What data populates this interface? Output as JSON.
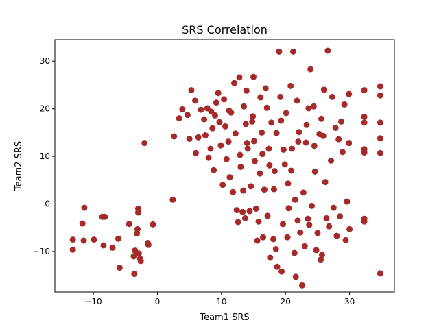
{
  "chart_data": {
    "type": "scatter",
    "title": "SRS Correlation",
    "xlabel": "Team1 SRS",
    "ylabel": "Team2 SRS",
    "xlim": [
      -16,
      37
    ],
    "ylim": [
      -18.5,
      34.5
    ],
    "xticks": [
      -10,
      0,
      10,
      20,
      30
    ],
    "yticks": [
      -10,
      0,
      10,
      20,
      30
    ],
    "xtick_labels": [
      "−10",
      "0",
      "10",
      "20",
      "30"
    ],
    "ytick_labels": [
      "−10",
      "0",
      "10",
      "20",
      "30"
    ],
    "grid": false,
    "marker_color": "#a52a2a",
    "points": [
      [
        -13.2,
        -7.5
      ],
      [
        -13.2,
        -9.6
      ],
      [
        -11.7,
        -4.1
      ],
      [
        -11.4,
        -0.8
      ],
      [
        -11.5,
        -7.7
      ],
      [
        -9.9,
        -7.5
      ],
      [
        -8.6,
        -2.7
      ],
      [
        -8.2,
        -2.7
      ],
      [
        -8.4,
        -8.7
      ],
      [
        -7.0,
        -9.2
      ],
      [
        -6.1,
        -7.3
      ],
      [
        -5.9,
        -13.4
      ],
      [
        -4.4,
        -4.2
      ],
      [
        -3.7,
        -11.0
      ],
      [
        -3.6,
        -14.7
      ],
      [
        -3.5,
        -9.8
      ],
      [
        -3.2,
        -6.2
      ],
      [
        -3.1,
        -5.3
      ],
      [
        -3.0,
        -1.0
      ],
      [
        -3.0,
        -1.8
      ],
      [
        -2.9,
        -10.4
      ],
      [
        -2.7,
        -11.5
      ],
      [
        -2.6,
        -12.0
      ],
      [
        -2.0,
        12.8
      ],
      [
        -1.5,
        -8.2
      ],
      [
        -1.4,
        -8.6
      ],
      [
        -0.7,
        -4.3
      ],
      [
        2.4,
        0.9
      ],
      [
        2.6,
        14.2
      ],
      [
        3.4,
        18.0
      ],
      [
        3.9,
        19.9
      ],
      [
        4.7,
        18.7
      ],
      [
        5.0,
        13.7
      ],
      [
        5.3,
        23.9
      ],
      [
        5.9,
        21.7
      ],
      [
        6.0,
        10.7
      ],
      [
        6.4,
        14.0
      ],
      [
        6.8,
        19.8
      ],
      [
        7.3,
        17.8
      ],
      [
        7.5,
        14.4
      ],
      [
        7.8,
        20.1
      ],
      [
        8.0,
        9.7
      ],
      [
        8.3,
        11.6
      ],
      [
        8.4,
        19.4
      ],
      [
        8.6,
        15.9
      ],
      [
        8.8,
        7.1
      ],
      [
        9.0,
        18.6
      ],
      [
        9.2,
        21.3
      ],
      [
        9.5,
        23.3
      ],
      [
        9.7,
        17.2
      ],
      [
        9.9,
        12.3
      ],
      [
        10.2,
        4.0
      ],
      [
        10.4,
        22.0
      ],
      [
        10.6,
        16.3
      ],
      [
        10.8,
        9.4
      ],
      [
        11.1,
        13.1
      ],
      [
        11.3,
        5.6
      ],
      [
        11.5,
        19.2
      ],
      [
        11.8,
        2.5
      ],
      [
        12.0,
        25.4
      ],
      [
        12.2,
        14.8
      ],
      [
        12.4,
        -1.3
      ],
      [
        12.6,
        -3.8
      ],
      [
        12.8,
        26.6
      ],
      [
        13.0,
        7.8
      ],
      [
        13.3,
        -1.7
      ],
      [
        13.5,
        20.5
      ],
      [
        13.7,
        -3.0
      ],
      [
        13.9,
        23.8
      ],
      [
        14.1,
        11.6
      ],
      [
        14.4,
        -1.5
      ],
      [
        14.6,
        3.7
      ],
      [
        14.8,
        17.3
      ],
      [
        15.0,
        26.7
      ],
      [
        15.2,
        9.0
      ],
      [
        15.4,
        -1.0
      ],
      [
        15.6,
        -7.7
      ],
      [
        15.8,
        -3.7
      ],
      [
        16.1,
        22.4
      ],
      [
        16.3,
        15.0
      ],
      [
        16.5,
        -7.0
      ],
      [
        16.7,
        3.0
      ],
      [
        16.9,
        24.3
      ],
      [
        17.2,
        -2.5
      ],
      [
        17.4,
        11.6
      ],
      [
        17.6,
        -11.3
      ],
      [
        17.8,
        17.1
      ],
      [
        18.1,
        -7.4
      ],
      [
        18.3,
        6.9
      ],
      [
        18.5,
        -9.5
      ],
      [
        18.7,
        -13.2
      ],
      [
        19.0,
        32.0
      ],
      [
        19.2,
        22.5
      ],
      [
        19.4,
        -14.2
      ],
      [
        19.6,
        -4.2
      ],
      [
        19.9,
        8.3
      ],
      [
        20.1,
        19.1
      ],
      [
        20.3,
        -7.0
      ],
      [
        20.5,
        -0.9
      ],
      [
        20.8,
        24.8
      ],
      [
        21.0,
        11.6
      ],
      [
        21.2,
        32.0
      ],
      [
        21.4,
        -10.3
      ],
      [
        21.6,
        -15.3
      ],
      [
        21.9,
        -3.5
      ],
      [
        22.1,
        15.1
      ],
      [
        22.3,
        -6.0
      ],
      [
        22.6,
        -17.1
      ],
      [
        22.8,
        2.4
      ],
      [
        23.0,
        -8.9
      ],
      [
        23.2,
        12.9
      ],
      [
        23.5,
        -3.1
      ],
      [
        23.7,
        -4.4
      ],
      [
        23.9,
        28.3
      ],
      [
        24.1,
        -0.4
      ],
      [
        24.4,
        20.5
      ],
      [
        24.6,
        6.8
      ],
      [
        24.8,
        -9.7
      ],
      [
        25.0,
        -6.1
      ],
      [
        25.3,
        14.7
      ],
      [
        25.5,
        -11.7
      ],
      [
        25.7,
        -10.7
      ],
      [
        26.0,
        24.0
      ],
      [
        26.2,
        4.6
      ],
      [
        26.4,
        -3.0
      ],
      [
        26.6,
        32.2
      ],
      [
        26.8,
        -4.7
      ],
      [
        27.1,
        9.1
      ],
      [
        27.3,
        22.5
      ],
      [
        27.5,
        -0.8
      ],
      [
        27.8,
        16.0
      ],
      [
        28.0,
        -6.7
      ],
      [
        28.3,
        13.6
      ],
      [
        28.5,
        -2.6
      ],
      [
        28.7,
        17.3
      ],
      [
        28.9,
        10.9
      ],
      [
        29.2,
        20.9
      ],
      [
        29.4,
        -7.6
      ],
      [
        29.6,
        0.5
      ],
      [
        29.9,
        12.8
      ],
      [
        29.9,
        23.1
      ],
      [
        30.0,
        -5.3
      ],
      [
        32.3,
        23.9
      ],
      [
        32.3,
        18.3
      ],
      [
        32.3,
        17.1
      ],
      [
        32.3,
        11.5
      ],
      [
        32.3,
        10.8
      ],
      [
        32.3,
        -3.1
      ],
      [
        32.3,
        -3.7
      ],
      [
        34.8,
        24.7
      ],
      [
        34.8,
        22.8
      ],
      [
        34.8,
        17.1
      ],
      [
        34.8,
        13.8
      ],
      [
        34.8,
        10.7
      ],
      [
        34.8,
        -14.6
      ],
      [
        11.2,
        19.6
      ],
      [
        13.8,
        16.8
      ],
      [
        15.1,
        13.2
      ],
      [
        16.4,
        10.5
      ],
      [
        17.5,
        8.1
      ],
      [
        18.6,
        14.9
      ],
      [
        19.7,
        11.4
      ],
      [
        20.9,
        7.0
      ],
      [
        22.0,
        13.1
      ],
      [
        23.3,
        16.6
      ],
      [
        24.5,
        12.2
      ],
      [
        25.6,
        17.9
      ],
      [
        14.9,
        18.4
      ],
      [
        16.0,
        6.4
      ],
      [
        18.2,
        3.1
      ],
      [
        20.4,
        4.3
      ],
      [
        21.5,
        0.9
      ],
      [
        12.9,
        10.3
      ],
      [
        14.0,
        12.8
      ],
      [
        17.1,
        20.2
      ],
      [
        19.3,
        17.5
      ],
      [
        21.8,
        21.7
      ],
      [
        23.6,
        20.1
      ],
      [
        25.9,
        14.3
      ],
      [
        13.4,
        2.8
      ]
    ]
  }
}
